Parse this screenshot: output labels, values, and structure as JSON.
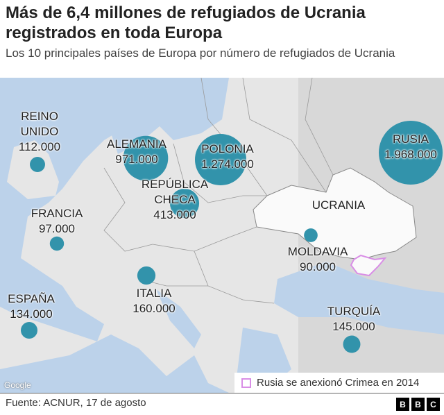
{
  "header": {
    "title": "Más de 6,4 millones de refugiados de Ucrania registrados en toda Europa",
    "subtitle": "Los 10 principales países de Europa por número de refugiados de Ucrania"
  },
  "colors": {
    "bubble": "#3293ab",
    "land": "#e6e6e6",
    "sea": "#bcd2ea",
    "russia": "#d8d8d8",
    "ukraine": "#fafafa",
    "crimea": "#d98ee6"
  },
  "countries": [
    {
      "name": "REINO UNIDO",
      "value": "112.000",
      "refugees": 112000
    },
    {
      "name": "ALEMANIA",
      "value": "971.000",
      "refugees": 971000
    },
    {
      "name": "POLONIA",
      "value": "1.274.000",
      "refugees": 1274000
    },
    {
      "name": "REPÚBLICA CHECA",
      "value": "413.000",
      "refugees": 413000
    },
    {
      "name": "FRANCIA",
      "value": "97.000",
      "refugees": 97000
    },
    {
      "name": "ITALIA",
      "value": "160.000",
      "refugees": 160000
    },
    {
      "name": "ESPAÑA",
      "value": "134.000",
      "refugees": 134000
    },
    {
      "name": "MOLDAVIA",
      "value": "90.000",
      "refugees": 90000
    },
    {
      "name": "TURQUÍA",
      "value": "145.000",
      "refugees": 145000
    },
    {
      "name": "RUSIA",
      "value": "1.968.000",
      "refugees": 1968000
    }
  ],
  "ukraine_label": "UCRANIA",
  "map_attribution": "Google",
  "legend": {
    "label": "Rusia se anexionó Crimea en 2014"
  },
  "footer": {
    "source": "Fuente: ACNUR, 17 de agosto",
    "logo": [
      "B",
      "B",
      "C"
    ]
  }
}
